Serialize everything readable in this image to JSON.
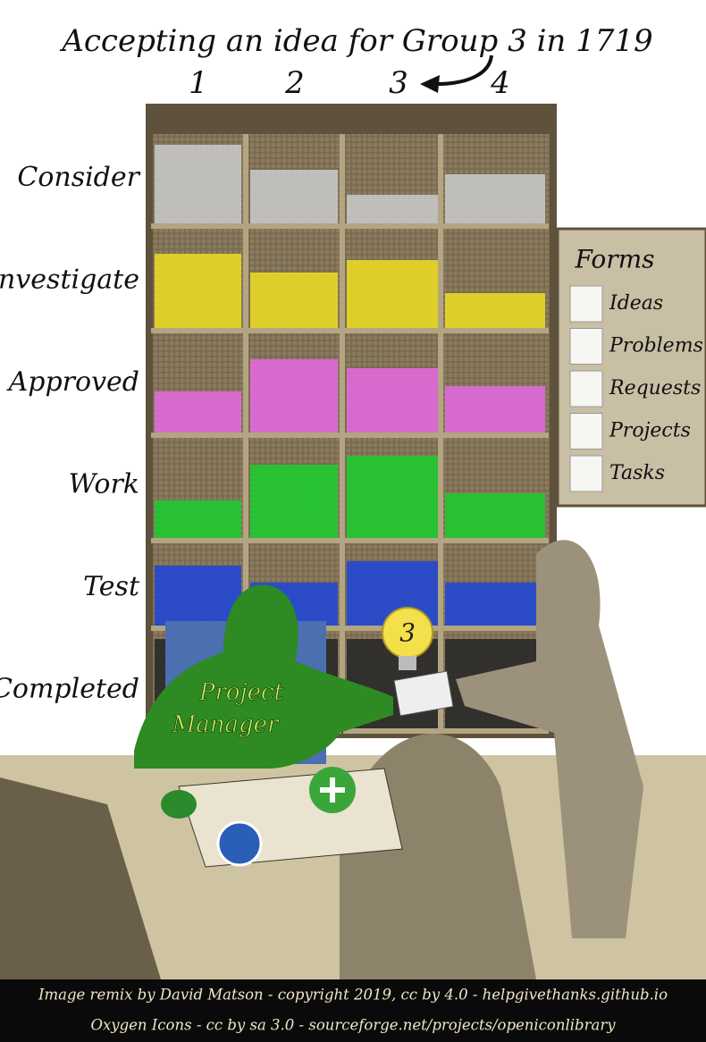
{
  "title": "Accepting an idea for Group 3 in 1719",
  "columns": [
    "1",
    "2",
    "3",
    "4"
  ],
  "rows": [
    "Consider",
    "Investigate",
    "Approved",
    "Work",
    "Test",
    "Completed"
  ],
  "forms": {
    "title": "Forms",
    "items": [
      "Ideas",
      "Problems",
      "Requests",
      "Projects",
      "Tasks"
    ]
  },
  "bulb_label": "3",
  "manager": [
    "Project",
    "Manager"
  ],
  "footer": [
    "Image remix by David Matson - copyright 2019, cc by 4.0 - helpgivethanks.github.io",
    "Oxygen Icons - cc by sa 3.0 - sourceforge.net/projects/openiconlibrary"
  ]
}
